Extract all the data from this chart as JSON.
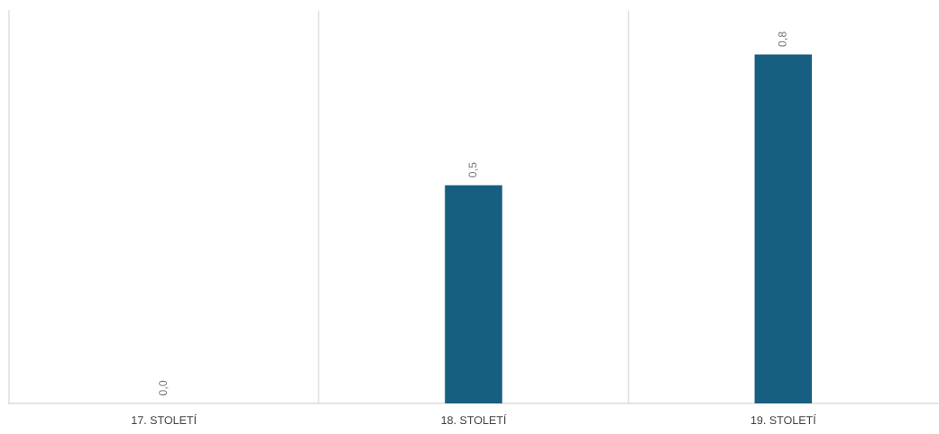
{
  "chart_data": {
    "type": "bar",
    "categories": [
      "17. STOLETÍ",
      "18. STOLETÍ",
      "19. STOLETÍ"
    ],
    "values": [
      0.0,
      0.5,
      0.8
    ],
    "value_labels": [
      "0,0",
      "0,5",
      "0,8"
    ],
    "color": "#165f81",
    "ylim": [
      0,
      0.9
    ],
    "grid": "x",
    "tick_labels": "x"
  }
}
